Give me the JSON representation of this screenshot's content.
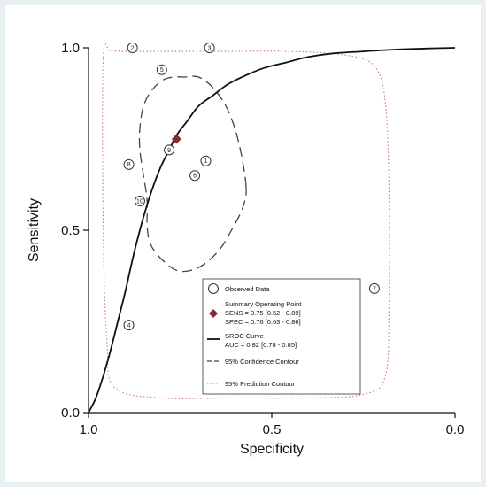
{
  "chart_data": {
    "type": "scatter",
    "xlabel": "Specificity",
    "ylabel": "Sensitivity",
    "x_reversed": true,
    "xlim": [
      1.0,
      0.0
    ],
    "ylim": [
      0.0,
      1.0
    ],
    "x_ticks": [
      "1.0",
      "0.5",
      "0.0"
    ],
    "y_ticks": [
      "0.0",
      "0.5",
      "1.0"
    ],
    "grid": false,
    "legend_position": "bottom-right",
    "observed_data": [
      {
        "id": "1",
        "specificity": 0.68,
        "sensitivity": 0.69
      },
      {
        "id": "2",
        "specificity": 0.88,
        "sensitivity": 1.0
      },
      {
        "id": "3",
        "specificity": 0.67,
        "sensitivity": 1.0
      },
      {
        "id": "4",
        "specificity": 0.89,
        "sensitivity": 0.24
      },
      {
        "id": "5",
        "specificity": 0.8,
        "sensitivity": 0.94
      },
      {
        "id": "6",
        "specificity": 0.71,
        "sensitivity": 0.65
      },
      {
        "id": "7",
        "specificity": 0.22,
        "sensitivity": 0.34
      },
      {
        "id": "8",
        "specificity": 0.89,
        "sensitivity": 0.68
      },
      {
        "id": "9",
        "specificity": 0.78,
        "sensitivity": 0.72
      },
      {
        "id": "10",
        "specificity": 0.86,
        "sensitivity": 0.58
      }
    ],
    "summary_point": {
      "specificity": 0.76,
      "sensitivity": 0.75
    },
    "sroc_curve": {
      "specificity": [
        1.0,
        0.98,
        0.96,
        0.94,
        0.92,
        0.9,
        0.88,
        0.86,
        0.84,
        0.82,
        0.8,
        0.78,
        0.76,
        0.73,
        0.7,
        0.66,
        0.62,
        0.57,
        0.52,
        0.46,
        0.4,
        0.33,
        0.25,
        0.17,
        0.08,
        0.0
      ],
      "sensitivity": [
        0.0,
        0.04,
        0.1,
        0.17,
        0.25,
        0.33,
        0.42,
        0.5,
        0.57,
        0.63,
        0.68,
        0.72,
        0.76,
        0.8,
        0.84,
        0.87,
        0.9,
        0.925,
        0.945,
        0.96,
        0.975,
        0.985,
        0.99,
        0.995,
        0.998,
        1.0
      ]
    },
    "confidence_contour": {
      "specificity": [
        0.57,
        0.59,
        0.62,
        0.66,
        0.7,
        0.74,
        0.77,
        0.8,
        0.83,
        0.85,
        0.86,
        0.86,
        0.85,
        0.84,
        0.84,
        0.83,
        0.8,
        0.76,
        0.72,
        0.68,
        0.64,
        0.61,
        0.58,
        0.57
      ],
      "sensitivity": [
        0.62,
        0.74,
        0.83,
        0.89,
        0.92,
        0.92,
        0.92,
        0.91,
        0.88,
        0.84,
        0.78,
        0.72,
        0.65,
        0.58,
        0.51,
        0.46,
        0.42,
        0.39,
        0.39,
        0.41,
        0.45,
        0.5,
        0.56,
        0.62
      ]
    },
    "prediction_contour": {
      "specificity": [
        0.96,
        0.96,
        0.95,
        0.93,
        0.8,
        0.6,
        0.4,
        0.25,
        0.19,
        0.18,
        0.18,
        0.19,
        0.22,
        0.3,
        0.45,
        0.65,
        0.8,
        0.9,
        0.94,
        0.96
      ],
      "sensitivity": [
        0.97,
        0.5,
        0.2,
        0.07,
        0.04,
        0.04,
        0.04,
        0.05,
        0.1,
        0.3,
        0.6,
        0.85,
        0.95,
        0.98,
        0.99,
        0.99,
        0.99,
        0.99,
        0.99,
        0.97
      ]
    },
    "legend": {
      "observed": "Observed Data",
      "summary_title": "Summary Operating Point",
      "summary_sens": "SENS = 0.75 [0.52 - 0.89]",
      "summary_spec": "SPEC = 0.76 [0.63 - 0.86]",
      "sroc_title": "SROC Curve",
      "sroc_auc": "AUC = 0.82 [0.78 - 0.85]",
      "confidence": "95% Confidence Contour",
      "prediction": "95% Prediction Contour"
    },
    "colors": {
      "summary_point": "#8b2a2a",
      "curve": "#111111",
      "prediction": "#c77a7a"
    }
  }
}
